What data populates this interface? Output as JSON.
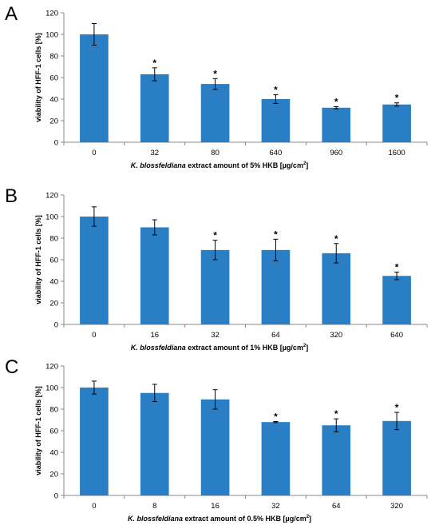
{
  "chart_data": [
    {
      "type": "bar",
      "panel_label": "A",
      "ylabel": "viability of HFF-1 cells [%]",
      "xlabel_italic": "K. blossfeldiana",
      "xlabel_rest": " extract amount of 5% HKB [µg/cm",
      "xlabel_sup": "2",
      "xlabel_end": "]",
      "categories": [
        "0",
        "32",
        "80",
        "640",
        "960",
        "1600"
      ],
      "values": [
        100,
        63,
        54,
        40,
        32,
        35
      ],
      "errors": [
        10,
        6,
        5,
        4,
        1,
        1.5
      ],
      "significance": [
        "",
        "*",
        "*",
        "*",
        "*",
        "*"
      ],
      "ylim": [
        0,
        120
      ],
      "yticks": [
        0,
        20,
        40,
        60,
        80,
        100,
        120
      ],
      "grid": false,
      "bar_color": "#2a7fc4"
    },
    {
      "type": "bar",
      "panel_label": "B",
      "ylabel": "viability of HFF-1 cells [%]",
      "xlabel_italic": "K. blossfeldiana",
      "xlabel_rest": " extract amount of 1% HKB [µg/cm",
      "xlabel_sup": "2",
      "xlabel_end": "]",
      "categories": [
        "0",
        "16",
        "32",
        "64",
        "320",
        "640"
      ],
      "values": [
        100,
        90,
        69,
        69,
        66,
        45
      ],
      "errors": [
        9,
        7,
        9,
        10,
        9,
        3.5
      ],
      "significance": [
        "",
        "",
        "*",
        "*",
        "*",
        "*"
      ],
      "ylim": [
        0,
        120
      ],
      "yticks": [
        0,
        20,
        40,
        60,
        80,
        100,
        120
      ],
      "grid": false,
      "bar_color": "#2a7fc4"
    },
    {
      "type": "bar",
      "panel_label": "C",
      "ylabel": "viability of HFF-1 cells [%]",
      "xlabel_italic": "K. blossfeldiana",
      "xlabel_rest": " extract amount of 0.5% HKB [µg/cm",
      "xlabel_sup": "2",
      "xlabel_end": "]",
      "categories": [
        "0",
        "8",
        "16",
        "32",
        "64",
        "320"
      ],
      "values": [
        100,
        95,
        89,
        68,
        65,
        69
      ],
      "errors": [
        6,
        8,
        9,
        0.5,
        6,
        8
      ],
      "significance": [
        "",
        "",
        "",
        "*",
        "*",
        "*"
      ],
      "ylim": [
        0,
        120
      ],
      "yticks": [
        0,
        20,
        40,
        60,
        80,
        100,
        120
      ],
      "grid": false,
      "bar_color": "#2a7fc4"
    }
  ]
}
